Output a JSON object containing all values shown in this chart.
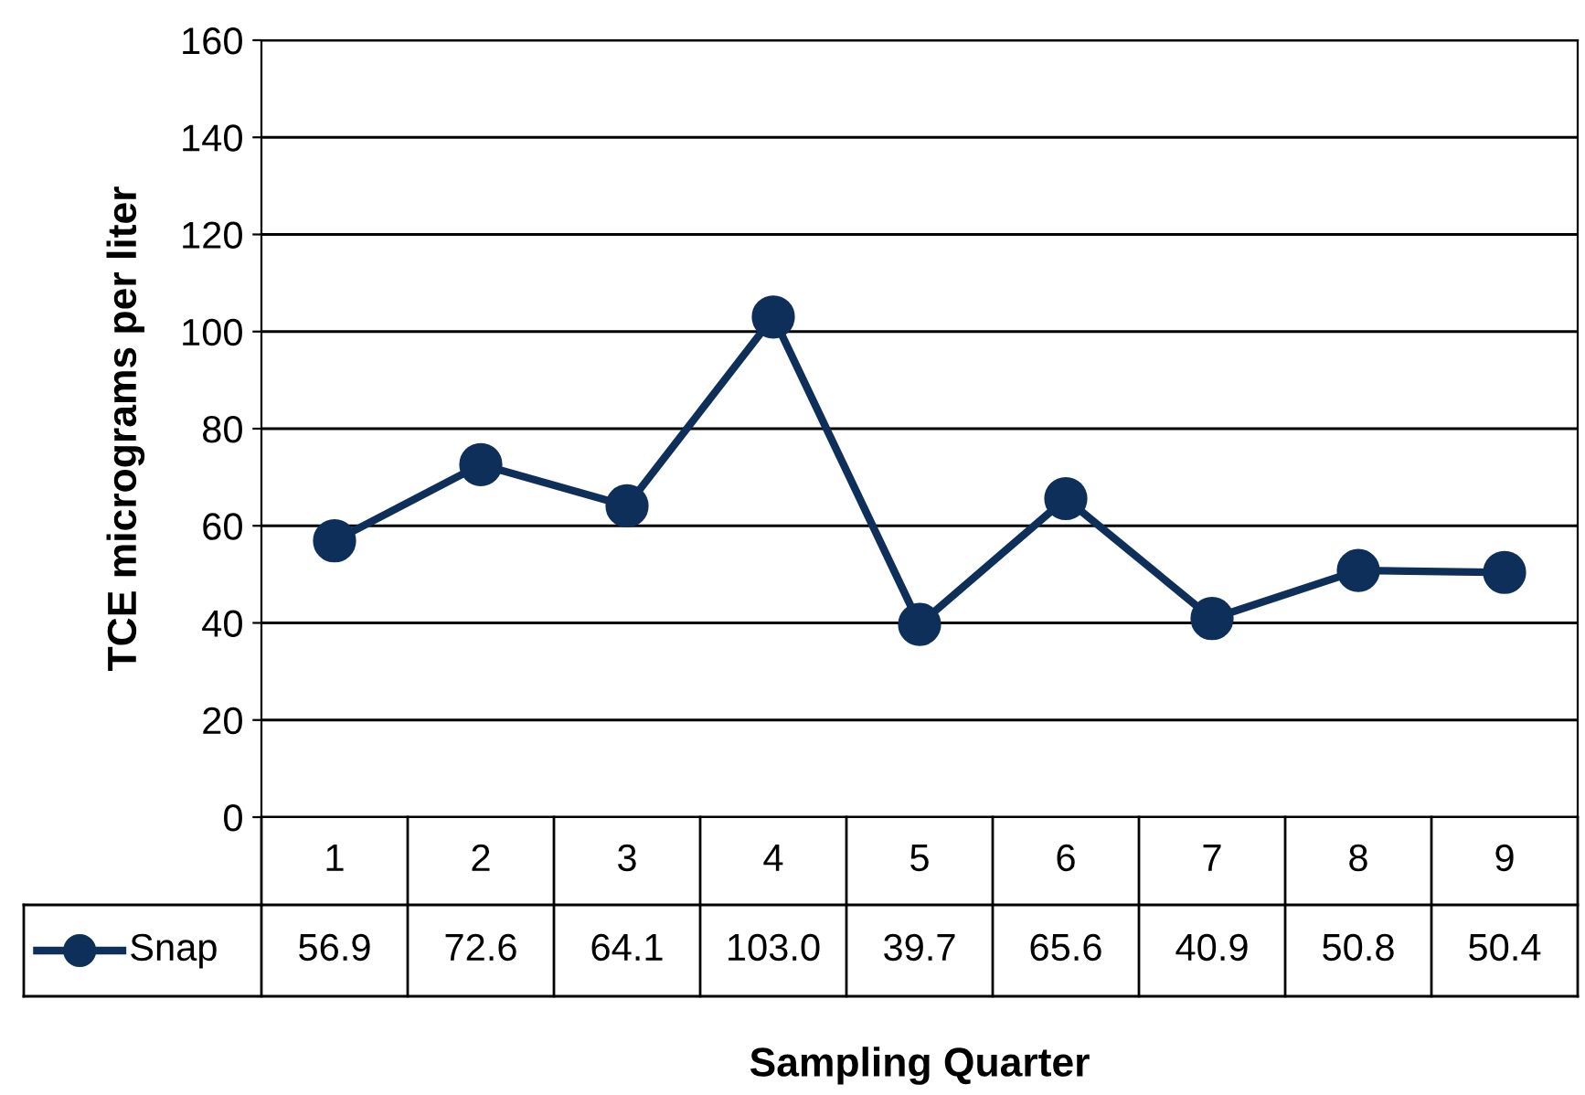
{
  "chart_data": {
    "type": "line",
    "xlabel": "Sampling Quarter",
    "ylabel": "TCE micrograms per liter",
    "categories": [
      "1",
      "2",
      "3",
      "4",
      "5",
      "6",
      "7",
      "8",
      "9"
    ],
    "series": [
      {
        "name": "Snap",
        "color": "#0d2f5a",
        "values": [
          56.9,
          72.6,
          64.1,
          103.0,
          39.7,
          65.6,
          40.9,
          50.8,
          50.4
        ],
        "value_labels": [
          "56.9",
          "72.6",
          "64.1",
          "103.0",
          "39.7",
          "65.6",
          "40.9",
          "50.8",
          "50.4"
        ]
      }
    ],
    "ylim": [
      0,
      160
    ],
    "yticks": [
      0,
      20,
      40,
      60,
      80,
      100,
      120,
      140,
      160
    ],
    "grid": "y",
    "marker": "circle",
    "line_style": "solid",
    "legend": "bottom left"
  }
}
